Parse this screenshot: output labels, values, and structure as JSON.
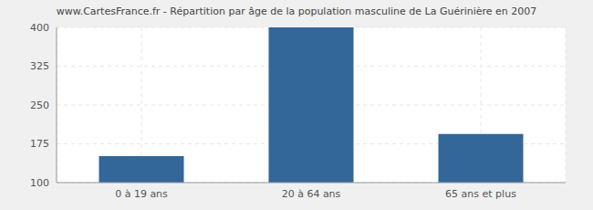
{
  "chart_data": {
    "type": "bar",
    "title": "www.CartesFrance.fr - Répartition par âge de la population masculine de La Guérinière en 2007",
    "categories": [
      "0 à 19 ans",
      "20 à 64 ans",
      "65 ans et plus"
    ],
    "values": [
      151,
      400,
      194
    ],
    "color": "#336699",
    "ylim": [
      100,
      400
    ],
    "yticks": [
      100,
      175,
      250,
      325,
      400
    ],
    "grid": true
  }
}
